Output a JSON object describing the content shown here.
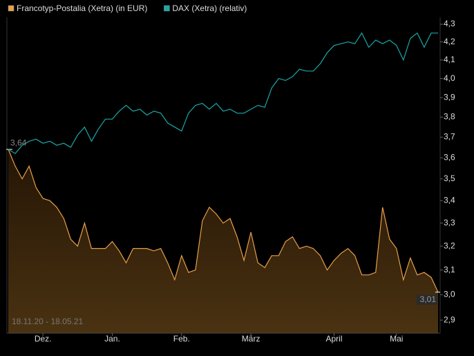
{
  "chart_data": {
    "type": "line",
    "subtitle": "18.11.20 - 18.05.21",
    "log_y": true,
    "ylim": [
      2.85,
      4.34
    ],
    "yticks": [
      {
        "value": 2.9,
        "label": "2,9"
      },
      {
        "value": 3.0,
        "label": "3,0"
      },
      {
        "value": 3.1,
        "label": "3,1"
      },
      {
        "value": 3.2,
        "label": "3,2"
      },
      {
        "value": 3.3,
        "label": "3,3"
      },
      {
        "value": 3.4,
        "label": "3,4"
      },
      {
        "value": 3.5,
        "label": "3,5"
      },
      {
        "value": 3.6,
        "label": "3,6"
      },
      {
        "value": 3.7,
        "label": "3,7"
      },
      {
        "value": 3.8,
        "label": "3,8"
      },
      {
        "value": 3.9,
        "label": "3,9"
      },
      {
        "value": 4.0,
        "label": "4,0"
      },
      {
        "value": 4.1,
        "label": "4,1"
      },
      {
        "value": 4.2,
        "label": "4,2"
      },
      {
        "value": 4.3,
        "label": "4,3"
      }
    ],
    "categories": [
      null,
      null,
      null,
      null,
      null,
      "Dez.",
      null,
      null,
      null,
      null,
      null,
      null,
      null,
      null,
      null,
      "Jan.",
      null,
      null,
      null,
      null,
      null,
      null,
      null,
      null,
      null,
      "Feb.",
      null,
      null,
      null,
      null,
      null,
      null,
      null,
      null,
      null,
      "März",
      null,
      null,
      null,
      null,
      null,
      null,
      null,
      null,
      null,
      null,
      null,
      "April",
      null,
      null,
      null,
      null,
      null,
      null,
      null,
      null,
      "Mai",
      null,
      null,
      null,
      null,
      null,
      null
    ],
    "series": [
      {
        "name": "Francotyp-Postalia (Xetra) (in EUR)",
        "color": "#e8a04a",
        "area": true,
        "values": [
          3.64,
          3.56,
          3.5,
          3.56,
          3.46,
          3.41,
          3.4,
          3.37,
          3.32,
          3.23,
          3.2,
          3.3,
          3.19,
          3.19,
          3.19,
          3.22,
          3.18,
          3.13,
          3.19,
          3.19,
          3.19,
          3.18,
          3.19,
          3.13,
          3.06,
          3.16,
          3.09,
          3.1,
          3.31,
          3.37,
          3.34,
          3.3,
          3.32,
          3.24,
          3.14,
          3.26,
          3.13,
          3.11,
          3.16,
          3.16,
          3.22,
          3.24,
          3.19,
          3.2,
          3.19,
          3.16,
          3.1,
          3.14,
          3.17,
          3.19,
          3.16,
          3.08,
          3.08,
          3.09,
          3.37,
          3.23,
          3.19,
          3.06,
          3.15,
          3.08,
          3.09,
          3.07,
          3.01
        ],
        "value_labels": [
          "3,64",
          null,
          null,
          null,
          null,
          null,
          null,
          null,
          null,
          null,
          null,
          null,
          null,
          null,
          null,
          null,
          null,
          null,
          null,
          null,
          null,
          null,
          null,
          null,
          null,
          null,
          null,
          null,
          null,
          null,
          null,
          null,
          null,
          null,
          null,
          null,
          null,
          null,
          null,
          null,
          null,
          null,
          null,
          null,
          null,
          null,
          null,
          null,
          null,
          null,
          null,
          null,
          null,
          null,
          null,
          null,
          null,
          null,
          null,
          null,
          null,
          null,
          "3,01"
        ]
      },
      {
        "name": "DAX (Xetra) (relativ)",
        "color": "#1aa8a8",
        "values": [
          3.64,
          3.62,
          3.66,
          3.68,
          3.69,
          3.67,
          3.68,
          3.66,
          3.67,
          3.65,
          3.71,
          3.75,
          3.68,
          3.74,
          3.79,
          3.79,
          3.83,
          3.86,
          3.83,
          3.84,
          3.81,
          3.83,
          3.82,
          3.77,
          3.75,
          3.73,
          3.82,
          3.86,
          3.87,
          3.84,
          3.87,
          3.83,
          3.84,
          3.82,
          3.82,
          3.84,
          3.86,
          3.85,
          3.95,
          4.0,
          3.99,
          4.01,
          4.05,
          4.04,
          4.04,
          4.08,
          4.14,
          4.18,
          4.19,
          4.2,
          4.19,
          4.25,
          4.17,
          4.21,
          4.19,
          4.21,
          4.18,
          4.1,
          4.22,
          4.25,
          4.17,
          4.25,
          4.25
        ]
      }
    ]
  }
}
